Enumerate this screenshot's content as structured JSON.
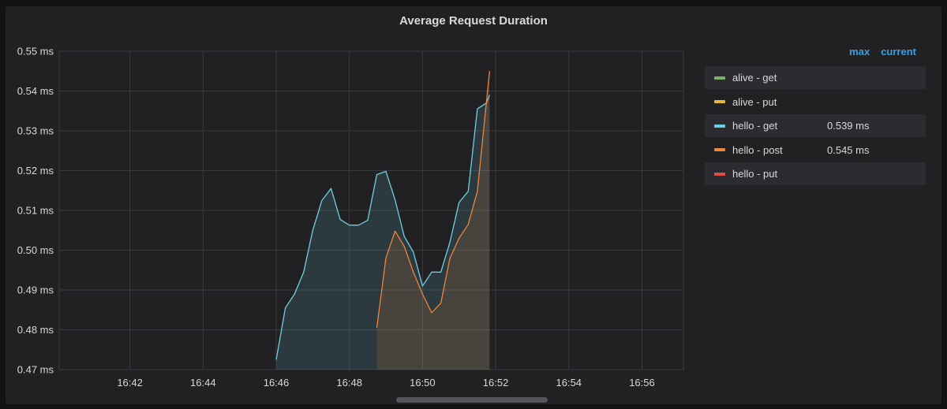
{
  "chart_data": {
    "type": "line",
    "title": "Average Request Duration",
    "x_ticks": [
      "16:42",
      "16:44",
      "16:46",
      "16:48",
      "16:50",
      "16:52",
      "16:54",
      "16:56"
    ],
    "y_ticks": [
      "0.47 ms",
      "0.48 ms",
      "0.49 ms",
      "0.50 ms",
      "0.51 ms",
      "0.52 ms",
      "0.53 ms",
      "0.54 ms",
      "0.55 ms"
    ],
    "xlim": [
      "16:40:04",
      "16:57:08"
    ],
    "ylim": [
      0.47,
      0.55
    ],
    "y_unit": "ms",
    "grid": true,
    "legend_position": "right",
    "legend_columns": [
      "max",
      "current"
    ],
    "series": [
      {
        "name": "alive - get",
        "color": "#7eb26d",
        "current": "",
        "x": [],
        "values": []
      },
      {
        "name": "alive - put",
        "color": "#eab839",
        "current": "",
        "x": [],
        "values": []
      },
      {
        "name": "hello - get",
        "color": "#6ed0e0",
        "current": "0.539 ms",
        "fill": true,
        "x": [
          "16:46:00",
          "16:46:15",
          "16:46:30",
          "16:46:45",
          "16:47:00",
          "16:47:15",
          "16:47:30",
          "16:47:45",
          "16:48:00",
          "16:48:15",
          "16:48:30",
          "16:48:45",
          "16:49:00",
          "16:49:15",
          "16:49:30",
          "16:49:45",
          "16:50:00",
          "16:50:15",
          "16:50:30",
          "16:50:45",
          "16:51:00",
          "16:51:15",
          "16:51:30",
          "16:51:45",
          "16:51:50"
        ],
        "values": [
          0.4725,
          0.4855,
          0.489,
          0.4945,
          0.505,
          0.5125,
          0.5155,
          0.5077,
          0.5063,
          0.5063,
          0.5075,
          0.519,
          0.5198,
          0.5127,
          0.5035,
          0.4995,
          0.491,
          0.4945,
          0.4945,
          0.502,
          0.512,
          0.5148,
          0.5355,
          0.537,
          0.539
        ]
      },
      {
        "name": "hello - post",
        "color": "#ef843c",
        "current": "0.545 ms",
        "fill": true,
        "x": [
          "16:48:45",
          "16:49:00",
          "16:49:15",
          "16:49:30",
          "16:49:45",
          "16:50:00",
          "16:50:15",
          "16:50:30",
          "16:50:45",
          "16:51:00",
          "16:51:15",
          "16:51:30",
          "16:51:50"
        ],
        "values": [
          0.4805,
          0.498,
          0.5048,
          0.501,
          0.4945,
          0.489,
          0.4843,
          0.4867,
          0.498,
          0.503,
          0.5065,
          0.5148,
          0.545
        ]
      },
      {
        "name": "hello - put",
        "color": "#e24d42",
        "current": "",
        "x": [],
        "values": []
      }
    ]
  }
}
